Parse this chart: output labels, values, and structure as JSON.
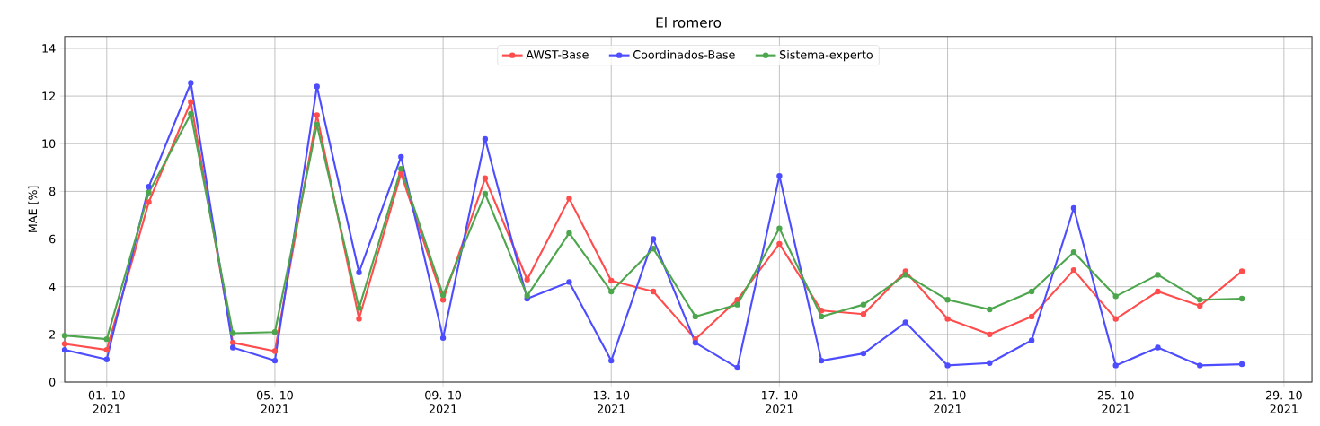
{
  "chart_data": {
    "type": "line",
    "title": "El romero",
    "ylabel": "MAE [%]",
    "x": [
      "2021-09-30",
      "2021-10-01",
      "2021-10-02",
      "2021-10-03",
      "2021-10-04",
      "2021-10-05",
      "2021-10-06",
      "2021-10-07",
      "2021-10-08",
      "2021-10-09",
      "2021-10-10",
      "2021-10-11",
      "2021-10-12",
      "2021-10-13",
      "2021-10-14",
      "2021-10-15",
      "2021-10-16",
      "2021-10-17",
      "2021-10-18",
      "2021-10-19",
      "2021-10-20",
      "2021-10-21",
      "2021-10-22",
      "2021-10-23",
      "2021-10-24",
      "2021-10-25",
      "2021-10-26",
      "2021-10-27",
      "2021-10-28"
    ],
    "series": [
      {
        "name": "AWST-Base",
        "color": "#ff4d4d",
        "values": [
          1.6,
          1.35,
          7.55,
          11.75,
          1.65,
          1.3,
          11.2,
          2.65,
          8.75,
          3.45,
          8.55,
          4.3,
          7.7,
          4.25,
          3.8,
          1.8,
          3.45,
          5.8,
          3.0,
          2.85,
          4.65,
          2.65,
          2.0,
          2.75,
          4.7,
          2.65,
          3.8,
          3.2,
          4.65
        ]
      },
      {
        "name": "Coordinados-Base",
        "color": "#4d4dff",
        "values": [
          1.35,
          0.95,
          8.2,
          12.55,
          1.45,
          0.9,
          12.4,
          4.6,
          9.45,
          1.85,
          10.2,
          3.5,
          4.2,
          0.9,
          6.0,
          1.65,
          0.6,
          8.65,
          0.9,
          1.2,
          2.5,
          0.7,
          0.8,
          1.75,
          7.3,
          0.7,
          1.45,
          0.7,
          0.75
        ]
      },
      {
        "name": "Sistema-experto",
        "color": "#4da64d",
        "values": [
          1.95,
          1.8,
          7.95,
          11.25,
          2.05,
          2.1,
          10.8,
          3.1,
          8.95,
          3.65,
          7.9,
          3.62,
          6.25,
          3.8,
          5.6,
          2.75,
          3.25,
          6.45,
          2.75,
          3.25,
          4.5,
          3.45,
          3.05,
          3.8,
          5.45,
          3.6,
          4.5,
          3.45,
          3.5
        ]
      }
    ],
    "xlim": [
      "2021-09-30",
      "2021-10-29T16:00"
    ],
    "xticks": [
      {
        "value": "2021-10-01",
        "label": "01. 10\n2021"
      },
      {
        "value": "2021-10-05",
        "label": "05. 10\n2021"
      },
      {
        "value": "2021-10-09",
        "label": "09. 10\n2021"
      },
      {
        "value": "2021-10-13",
        "label": "13. 10\n2021"
      },
      {
        "value": "2021-10-17",
        "label": "17. 10\n2021"
      },
      {
        "value": "2021-10-21",
        "label": "21. 10\n2021"
      },
      {
        "value": "2021-10-25",
        "label": "25. 10\n2021"
      },
      {
        "value": "2021-10-29",
        "label": "29. 10\n2021"
      }
    ],
    "ylim": [
      0,
      14.5
    ],
    "yticks": [
      0,
      2,
      4,
      6,
      8,
      10,
      12,
      14
    ],
    "grid": true,
    "legend": "top",
    "marker": "circle",
    "line_style": "solid"
  }
}
